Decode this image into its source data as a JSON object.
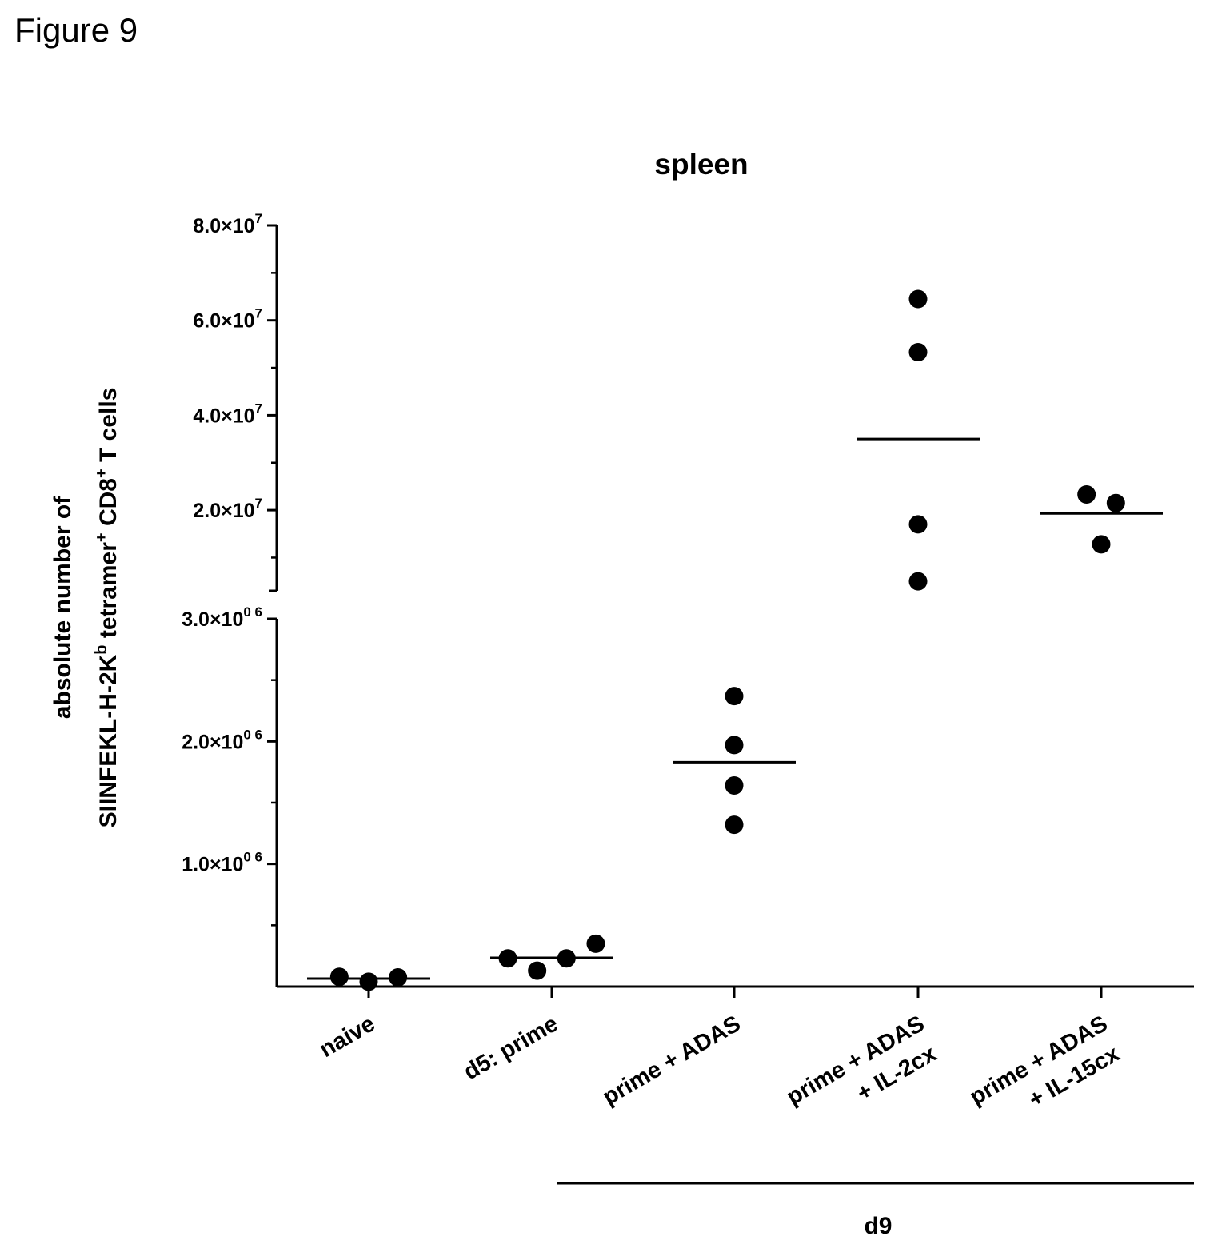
{
  "figure_label": "Figure 9",
  "chart_data": {
    "type": "scatter",
    "title": "spleen",
    "ylabel": {
      "line1": "absolute number of",
      "line2_parts": [
        "SIINFEKL-H-2K",
        "b",
        " tetramer",
        "+",
        " CD8",
        "+",
        " T cells"
      ]
    },
    "y_axis": {
      "scale": "segmented (broken axis)",
      "lower_segment": {
        "range": [
          0,
          3000000
        ],
        "major_ticks": [
          1000000,
          2000000,
          3000000
        ],
        "minor_ticks": [
          500000,
          1500000,
          2500000
        ],
        "tick_labels": [
          {
            "value": 1000000,
            "base": "1.0×10",
            "exp": "0 6"
          },
          {
            "value": 2000000,
            "base": "2.0×10",
            "exp": "0 6"
          },
          {
            "value": 3000000,
            "base": "3.0×10",
            "exp": "0 6"
          }
        ]
      },
      "upper_segment": {
        "range": [
          3000000,
          80000000
        ],
        "major_ticks": [
          20000000,
          40000000,
          60000000,
          80000000
        ],
        "minor_ticks": [
          10000000,
          30000000,
          50000000,
          70000000
        ],
        "tick_labels": [
          {
            "value": 20000000,
            "base": "2.0×10",
            "exp": "7"
          },
          {
            "value": 40000000,
            "base": "4.0×10",
            "exp": "7"
          },
          {
            "value": 60000000,
            "base": "6.0×10",
            "exp": "7"
          },
          {
            "value": 80000000,
            "base": "8.0×10",
            "exp": "7"
          }
        ]
      }
    },
    "categories": [
      [
        "naive"
      ],
      [
        "d5: prime"
      ],
      [
        "prime + ADAS"
      ],
      [
        "prime + ADAS",
        "+ IL-2cx"
      ],
      [
        "prime + ADAS",
        "+ IL-15cx"
      ]
    ],
    "group_label": {
      "text": "d9",
      "spans_categories": [
        2,
        4
      ]
    },
    "series": [
      {
        "category_index": 0,
        "points": [
          {
            "dx": -0.16,
            "y": 80000
          },
          {
            "dx": 0,
            "y": 40000
          },
          {
            "dx": 0.16,
            "y": 75000
          }
        ],
        "mean": 65000
      },
      {
        "category_index": 1,
        "points": [
          {
            "dx": -0.24,
            "y": 230000
          },
          {
            "dx": -0.08,
            "y": 130000
          },
          {
            "dx": 0.08,
            "y": 230000
          },
          {
            "dx": 0.24,
            "y": 350000
          }
        ],
        "mean": 235000
      },
      {
        "category_index": 2,
        "points": [
          {
            "dx": 0,
            "y": 2370000
          },
          {
            "dx": 0,
            "y": 1970000
          },
          {
            "dx": 0,
            "y": 1640000
          },
          {
            "dx": 0,
            "y": 1320000
          }
        ],
        "mean": 1830000
      },
      {
        "category_index": 3,
        "points": [
          {
            "dx": 0,
            "y": 64500000
          },
          {
            "dx": 0,
            "y": 53300000
          },
          {
            "dx": 0,
            "y": 17000000
          },
          {
            "dx": 0,
            "y": 5000000
          }
        ],
        "mean": 35000000
      },
      {
        "category_index": 4,
        "points": [
          {
            "dx": -0.08,
            "y": 23300000
          },
          {
            "dx": 0.08,
            "y": 21500000
          },
          {
            "dx": 0,
            "y": 12800000
          }
        ],
        "mean": 19300000
      }
    ],
    "grid": false,
    "legend": "none",
    "marker": "filled circle",
    "mean_line": true,
    "colors": {
      "marker": "#000000",
      "axis": "#000000"
    }
  }
}
